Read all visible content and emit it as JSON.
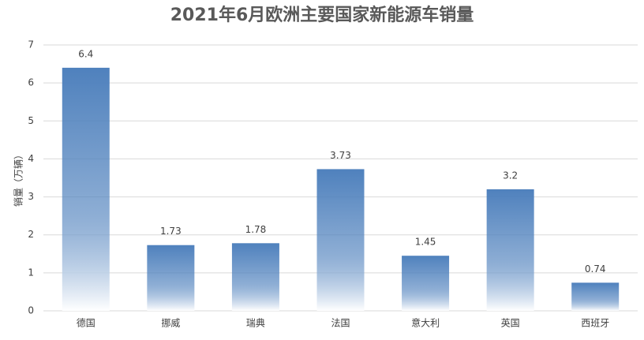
{
  "chart_data": {
    "type": "bar",
    "title": "2021年6月欧洲主要国家新能源车销量",
    "y_label": "销量（万辆）",
    "categories": [
      "德国",
      "挪威",
      "瑞典",
      "法国",
      "意大利",
      "英国",
      "西班牙"
    ],
    "values": [
      6.4,
      1.73,
      1.78,
      3.73,
      1.45,
      3.2,
      0.74
    ],
    "color": "#4f81bd",
    "ylim": [
      0,
      7
    ],
    "yticks": [
      0,
      1,
      2,
      3,
      4,
      5,
      6,
      7
    ],
    "grid": true
  }
}
